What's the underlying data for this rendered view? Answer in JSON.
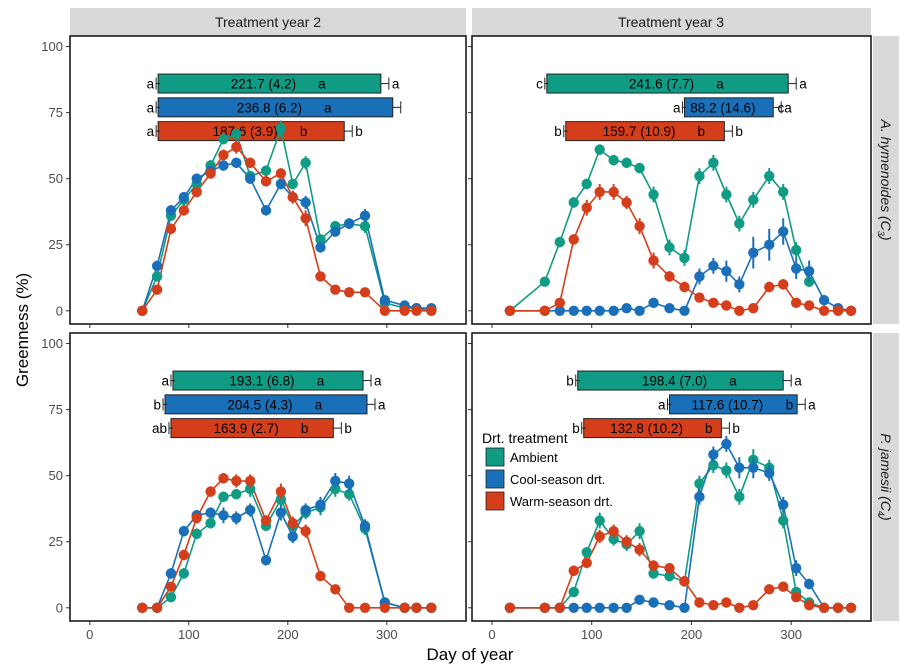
{
  "chart_data": {
    "type": "line",
    "xlabel": "Day of year",
    "ylabel": "Greenness (%)",
    "xlim": [
      -20,
      380
    ],
    "ylim": [
      -5,
      104
    ],
    "x_ticks": [
      0,
      100,
      200,
      300
    ],
    "y_ticks": [
      0,
      25,
      50,
      75,
      100
    ],
    "columns": [
      "Treatment year 2",
      "Treatment year 3"
    ],
    "rows": [
      {
        "label": "A. hymenoides (C",
        "sub": "3",
        "close": ")"
      },
      {
        "label": "P. jamesii (C",
        "sub": "4",
        "close": ")"
      }
    ],
    "treatments": [
      {
        "name": "Ambient",
        "color": "#0f9b84"
      },
      {
        "name": "Cool-season drt.",
        "color": "#1a70b8"
      },
      {
        "name": "Warm-season drt.",
        "color": "#d53e1b"
      }
    ],
    "legend": {
      "title": "Drt. treatment",
      "position": "panel bottom-right, upper-left"
    },
    "panels": [
      {
        "col": 0,
        "row": 0,
        "bars": [
          {
            "start": 69,
            "end": 294,
            "label": "221.7 (4.2)",
            "letter_in": "a",
            "left": "a",
            "right": "a"
          },
          {
            "start": 69,
            "end": 306,
            "label": "236.8 (6.2)",
            "letter_in": "a",
            "left": "a",
            "right": ""
          },
          {
            "start": 69,
            "end": 257,
            "label": "187.6 (3.9)",
            "letter_in": "b",
            "left": "a",
            "right": "b"
          }
        ],
        "series": [
          {
            "x": [
              53,
              68,
              82,
              95,
              108,
              122,
              135,
              148,
              162,
              178,
              193,
              205,
              218,
              233,
              248,
              262,
              278,
              298,
              318,
              330,
              345
            ],
            "y": [
              0,
              13,
              36,
              42,
              48,
              55,
              65,
              67,
              51,
              53,
              69,
              48,
              56,
              27,
              32,
              33,
              32,
              3,
              1,
              1,
              0
            ],
            "err": [
              0,
              1.5,
              2,
              2,
              2,
              2,
              2,
              2,
              2,
              2,
              3,
              2,
              2.5,
              2,
              2,
              2,
              2.5,
              1,
              0.5,
              0.5,
              0
            ]
          },
          {
            "x": [
              53,
              68,
              82,
              95,
              108,
              122,
              135,
              148,
              162,
              178,
              193,
              205,
              218,
              233,
              248,
              262,
              278,
              298,
              318,
              330,
              345
            ],
            "y": [
              0,
              17,
              38,
              43,
              50,
              53,
              55,
              56,
              50,
              38,
              48,
              43,
              41,
              24,
              30,
              33,
              36,
              4,
              2,
              1,
              1
            ],
            "err": [
              0,
              1.5,
              2,
              2,
              2,
              2,
              2,
              2,
              2,
              2,
              2,
              2,
              2.5,
              2,
              2,
              2,
              2.5,
              1,
              0.5,
              0.5,
              0.5
            ]
          },
          {
            "x": [
              53,
              68,
              82,
              95,
              108,
              122,
              135,
              148,
              162,
              178,
              193,
              205,
              218,
              233,
              248,
              262,
              278,
              298,
              318,
              330,
              345
            ],
            "y": [
              0,
              8,
              31,
              38,
              45,
              52,
              59,
              62,
              56,
              49,
              52,
              43,
              35,
              13,
              8,
              7,
              7,
              0,
              0,
              0,
              0
            ],
            "err": [
              0,
              1.5,
              2,
              2,
              2,
              2,
              2,
              2.5,
              2,
              2,
              2,
              2.5,
              3,
              1.5,
              1,
              1,
              1,
              0.5,
              0,
              0,
              0
            ]
          }
        ]
      },
      {
        "col": 1,
        "row": 0,
        "bars": [
          {
            "start": 55,
            "end": 297,
            "label": "241.6 (7.7)",
            "letter_in": "a",
            "left": "c",
            "right": "a"
          },
          {
            "start": 193,
            "end": 282,
            "label": "88.2 (14.6)",
            "letter_in": "c",
            "left": "a",
            "right": "a"
          },
          {
            "start": 74,
            "end": 233,
            "label": "159.7 (10.9)",
            "letter_in": "b",
            "left": "b",
            "right": "b"
          }
        ],
        "series": [
          {
            "x": [
              18,
              53,
              68,
              82,
              95,
              108,
              122,
              135,
              148,
              162,
              178,
              193,
              208,
              222,
              235,
              248,
              262,
              278,
              292,
              305,
              318
            ],
            "y": [
              0,
              11,
              26,
              41,
              48,
              61,
              57,
              56,
              54,
              44,
              24,
              20,
              51,
              56,
              44,
              33,
              42,
              51,
              45,
              23,
              11
            ],
            "err": [
              0,
              1.5,
              2,
              2,
              2,
              2,
              2,
              2,
              2,
              3,
              3,
              3,
              3,
              3,
              3,
              3,
              3,
              3,
              3,
              3,
              2
            ]
          },
          {
            "x": [
              18,
              53,
              68,
              82,
              95,
              108,
              122,
              135,
              148,
              162,
              178,
              193,
              208,
              222,
              235,
              248,
              262,
              278,
              292,
              305,
              318,
              333,
              347,
              360
            ],
            "y": [
              0,
              0,
              0,
              0,
              0,
              0,
              0,
              1,
              0,
              3,
              1,
              0,
              13,
              17,
              15,
              10,
              22,
              25,
              30,
              16,
              15,
              4,
              1,
              0
            ],
            "err": [
              0,
              0,
              0,
              0,
              0,
              0,
              0,
              0.5,
              0,
              1,
              0.5,
              0,
              3,
              3,
              4,
              3,
              6,
              6,
              5,
              4,
              4,
              2,
              1,
              0
            ]
          },
          {
            "x": [
              18,
              53,
              68,
              82,
              95,
              108,
              122,
              135,
              148,
              162,
              178,
              193,
              208,
              222,
              235,
              248,
              262,
              278,
              292,
              305,
              318,
              333,
              347,
              360
            ],
            "y": [
              0,
              0,
              3,
              27,
              39,
              45,
              45,
              41,
              32,
              19,
              13,
              9,
              5,
              3,
              2,
              0,
              1,
              9,
              10,
              3,
              2,
              0,
              0,
              0
            ],
            "err": [
              0,
              0,
              0.5,
              2,
              3,
              3,
              3,
              2.5,
              3,
              3,
              2,
              2,
              1.5,
              1,
              1,
              0.5,
              0.5,
              2,
              2,
              1.5,
              1,
              0,
              0,
              0
            ]
          }
        ]
      },
      {
        "col": 0,
        "row": 1,
        "bars": [
          {
            "start": 84,
            "end": 276,
            "label": "193.1 (6.8)",
            "letter_in": "a",
            "left": "a",
            "right": "a"
          },
          {
            "start": 76,
            "end": 280,
            "label": "204.5 (4.3)",
            "letter_in": "a",
            "left": "b",
            "right": "a"
          },
          {
            "start": 82,
            "end": 246,
            "label": "163.9 (2.7)",
            "letter_in": "b",
            "left": "ab",
            "right": "b"
          }
        ],
        "series": [
          {
            "x": [
              53,
              68,
              82,
              95,
              108,
              122,
              135,
              148,
              162,
              178,
              193,
              205,
              218,
              233,
              248,
              262,
              278,
              298,
              318,
              330,
              345
            ],
            "y": [
              0,
              0,
              4,
              13,
              28,
              32,
              42,
              43,
              45,
              31,
              41,
              31,
              36,
              38,
              45,
              43,
              30,
              2,
              0,
              0,
              0
            ],
            "err": [
              0,
              0,
              1,
              2,
              2,
              2,
              2,
              2,
              3,
              2,
              3,
              2.5,
              2.5,
              3,
              3,
              2.5,
              2.5,
              0.5,
              0,
              0,
              0
            ]
          },
          {
            "x": [
              53,
              68,
              82,
              95,
              108,
              122,
              135,
              148,
              162,
              178,
              193,
              205,
              218,
              233,
              248,
              262,
              278,
              298,
              318,
              330,
              345
            ],
            "y": [
              0,
              0,
              13,
              29,
              35,
              36,
              35,
              34,
              37,
              18,
              36,
              27,
              37,
              39,
              48,
              47,
              31,
              2,
              0,
              0,
              0
            ],
            "err": [
              0,
              0,
              2,
              2,
              2,
              2,
              3,
              2.5,
              2.5,
              2,
              3,
              2.5,
              2.5,
              3,
              3,
              3,
              2.5,
              0.5,
              0,
              0,
              0
            ]
          },
          {
            "x": [
              53,
              68,
              82,
              95,
              108,
              122,
              135,
              148,
              162,
              178,
              193,
              205,
              218,
              233,
              248,
              262,
              278,
              298,
              318,
              330,
              345
            ],
            "y": [
              0,
              0,
              8,
              20,
              34,
              44,
              49,
              48,
              48,
              33,
              44,
              32,
              29,
              12,
              7,
              0,
              0,
              0,
              0,
              0,
              0
            ],
            "err": [
              0,
              0,
              1.5,
              2,
              2,
              2,
              2,
              2.5,
              2.5,
              2,
              3,
              2.5,
              2.5,
              1.5,
              1,
              0,
              0,
              0,
              0,
              0,
              0
            ]
          }
        ]
      },
      {
        "col": 1,
        "row": 1,
        "bars": [
          {
            "start": 86,
            "end": 292,
            "label": "198.4 (7.0)",
            "letter_in": "a",
            "left": "b",
            "right": "a"
          },
          {
            "start": 178,
            "end": 306,
            "label": "117.6 (10.7)",
            "letter_in": "b",
            "left": "a",
            "right": "a"
          },
          {
            "start": 92,
            "end": 230,
            "label": "132.8 (10.2)",
            "letter_in": "b",
            "left": "b",
            "right": "b"
          }
        ],
        "series": [
          {
            "x": [
              18,
              53,
              68,
              82,
              95,
              108,
              122,
              135,
              148,
              162,
              178,
              193,
              208,
              222,
              235,
              248,
              262,
              278,
              292,
              305,
              318,
              333,
              347,
              360
            ],
            "y": [
              0,
              0,
              0,
              6,
              21,
              33,
              26,
              24,
              29,
              13,
              12,
              10,
              47,
              54,
              52,
              42,
              56,
              53,
              33,
              6,
              2,
              0,
              0,
              0
            ],
            "err": [
              0,
              0,
              0,
              1.5,
              2,
              3,
              2.5,
              2.5,
              3,
              2,
              2,
              2,
              3,
              3,
              3,
              3,
              4,
              3,
              3,
              1.5,
              1,
              0,
              0,
              0
            ]
          },
          {
            "x": [
              18,
              53,
              68,
              82,
              95,
              108,
              122,
              135,
              148,
              162,
              178,
              193,
              208,
              222,
              235,
              248,
              262,
              278,
              292,
              305,
              318,
              333,
              347,
              360
            ],
            "y": [
              0,
              0,
              0,
              0,
              0,
              0,
              0,
              0,
              3,
              2,
              1,
              0,
              42,
              58,
              62,
              53,
              53,
              51,
              39,
              15,
              9,
              0,
              0,
              0
            ],
            "err": [
              0,
              0,
              0,
              0,
              0,
              0,
              0,
              0,
              1,
              1,
              0.5,
              0,
              3,
              3,
              3,
              4,
              4,
              3,
              3,
              3,
              2,
              0,
              0,
              0
            ]
          },
          {
            "x": [
              18,
              53,
              68,
              82,
              95,
              108,
              122,
              135,
              148,
              162,
              178,
              193,
              208,
              222,
              235,
              248,
              262,
              278,
              292,
              305,
              318,
              333,
              347,
              360
            ],
            "y": [
              0,
              0,
              0,
              14,
              17,
              27,
              29,
              25,
              22,
              16,
              15,
              10,
              2,
              1,
              2,
              0,
              1,
              7,
              8,
              4,
              1,
              0,
              0,
              0
            ],
            "err": [
              0,
              0,
              0,
              2,
              2,
              2.5,
              2.5,
              2.5,
              2.5,
              2,
              2,
              2,
              1,
              0.5,
              1,
              0,
              0.5,
              1.5,
              1.5,
              1,
              0.5,
              0,
              0,
              0
            ]
          }
        ]
      }
    ]
  }
}
